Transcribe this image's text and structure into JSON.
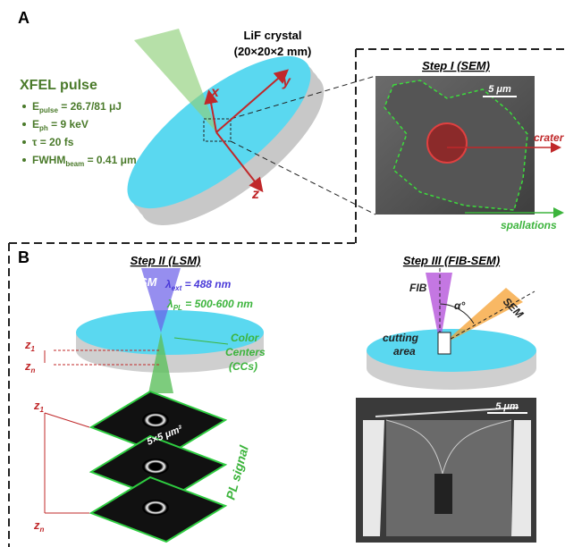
{
  "panel_a": {
    "label": "A",
    "crystal": [
      "LiF crystal",
      "(20×20×2 mm)"
    ],
    "pulse_title": "XFEL pulse",
    "params": [
      {
        "main": "E",
        "sub": "pulse",
        "rest": " = 26.7/81 μJ"
      },
      {
        "main": "E",
        "sub": "ph",
        "rest": " = 9 keV"
      },
      {
        "main": "τ = 20 fs"
      },
      {
        "main": "FWHM",
        "sub": "beam",
        "rest": " = 0.41 μm"
      }
    ],
    "axes": [
      "x",
      "y",
      "z"
    ],
    "step1": {
      "title": "Step I (SEM)",
      "scale": "5 μm",
      "crater": "crater",
      "spallations": "spallations"
    }
  },
  "panel_b": {
    "label": "B",
    "step2": {
      "title": "Step II (LSM)",
      "lsm": "LSM",
      "ext": {
        "main": "λ",
        "sub": "ext",
        "rest": " = 488 nm"
      },
      "pl": {
        "main": "λ",
        "sub": "PL",
        "rest": " = 500-600 nm"
      },
      "color_centers": [
        "Color",
        "Centers",
        "(CCs)"
      ],
      "z_disk": [
        {
          "main": "z",
          "sub": "1"
        },
        {
          "main": "z",
          "sub": "n"
        }
      ],
      "z_stack": [
        {
          "main": "z",
          "sub": "1"
        },
        {
          "main": "z",
          "sub": "n"
        }
      ],
      "area": "5×5 μm²",
      "pl_signal": "PL signal"
    },
    "step3": {
      "title": "Step III (FIB-SEM)",
      "fib": "FIB",
      "alpha": "α°",
      "sem": "SEM",
      "cutting_area": [
        "cutting",
        "area"
      ],
      "scale": "5 μm"
    }
  }
}
